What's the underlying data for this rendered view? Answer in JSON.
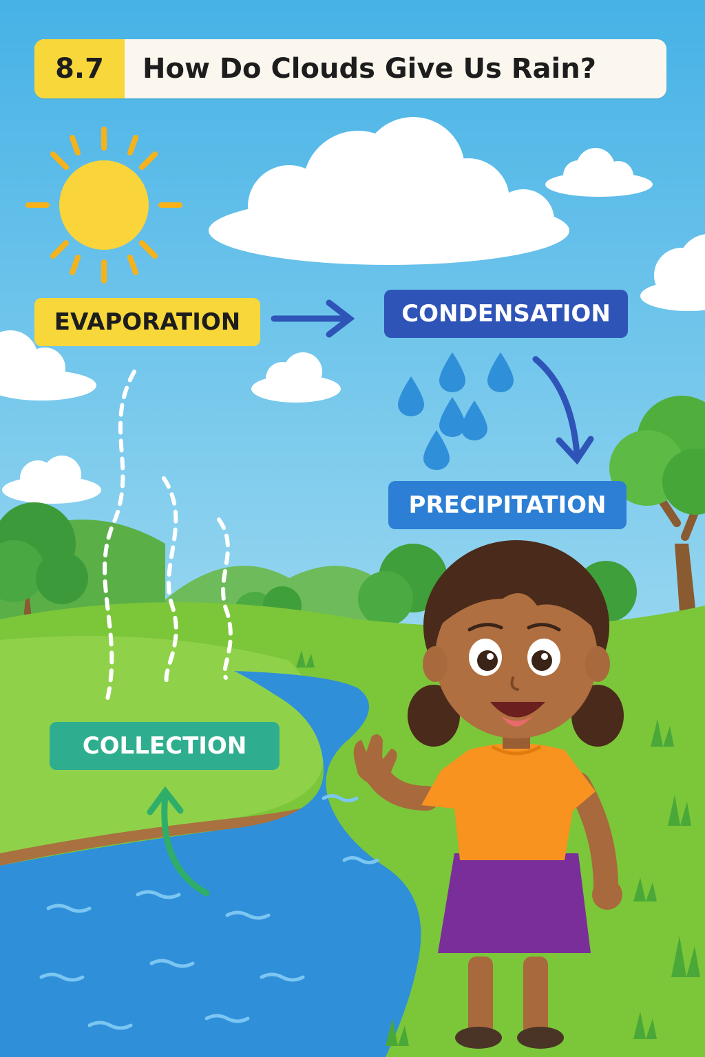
{
  "title": {
    "number": "8.7",
    "text": "How Do Clouds Give Us Rain?"
  },
  "stages": {
    "evaporation": "EVAPORATION",
    "condensation": "CONDENSATION",
    "precipitation": "PRECIPITATION",
    "collection": "COLLECTION"
  },
  "colors": {
    "sky_top": "#4bb4e6",
    "sky_bottom": "#bfe6f0",
    "evaporation_label": "#f7d73a",
    "condensation_label": "#2f54b8",
    "precipitation_label": "#2c7fd4",
    "collection_label": "#2fae8f",
    "river": "#2f8fd8",
    "grass": "#7cc63a",
    "shirt": "#f7931e",
    "skirt": "#7a2e9a"
  }
}
